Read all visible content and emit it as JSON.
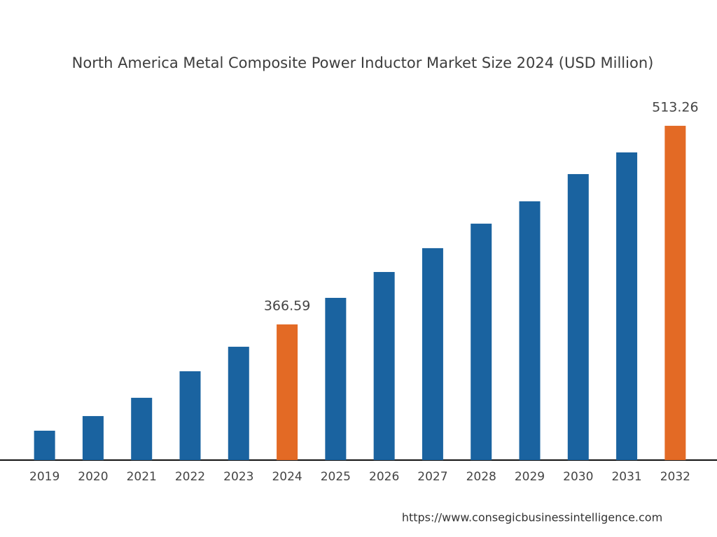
{
  "chart_data": {
    "type": "bar",
    "title": "North America Metal Composite Power Inductor Market Size 2024 (USD Million)",
    "categories": [
      "2019",
      "2020",
      "2021",
      "2022",
      "2023",
      "2024",
      "2025",
      "2026",
      "2027",
      "2028",
      "2029",
      "2030",
      "2031",
      "2032"
    ],
    "values": [
      288.1,
      298.9,
      312.4,
      332.0,
      350.1,
      366.59,
      386.2,
      405.3,
      422.9,
      441.0,
      457.5,
      477.6,
      493.6,
      513.26
    ],
    "value_labels": [
      null,
      null,
      null,
      null,
      null,
      "366.59",
      null,
      null,
      null,
      null,
      null,
      null,
      null,
      "513.26"
    ],
    "colors": [
      "#1a63a0",
      "#1a63a0",
      "#1a63a0",
      "#1a63a0",
      "#1a63a0",
      "#e36a25",
      "#1a63a0",
      "#1a63a0",
      "#1a63a0",
      "#1a63a0",
      "#1a63a0",
      "#1a63a0",
      "#1a63a0",
      "#e36a25"
    ],
    "ylim": [
      266.4,
      528.7
    ],
    "source": "https://www.consegicbusinessintelligence.com"
  }
}
